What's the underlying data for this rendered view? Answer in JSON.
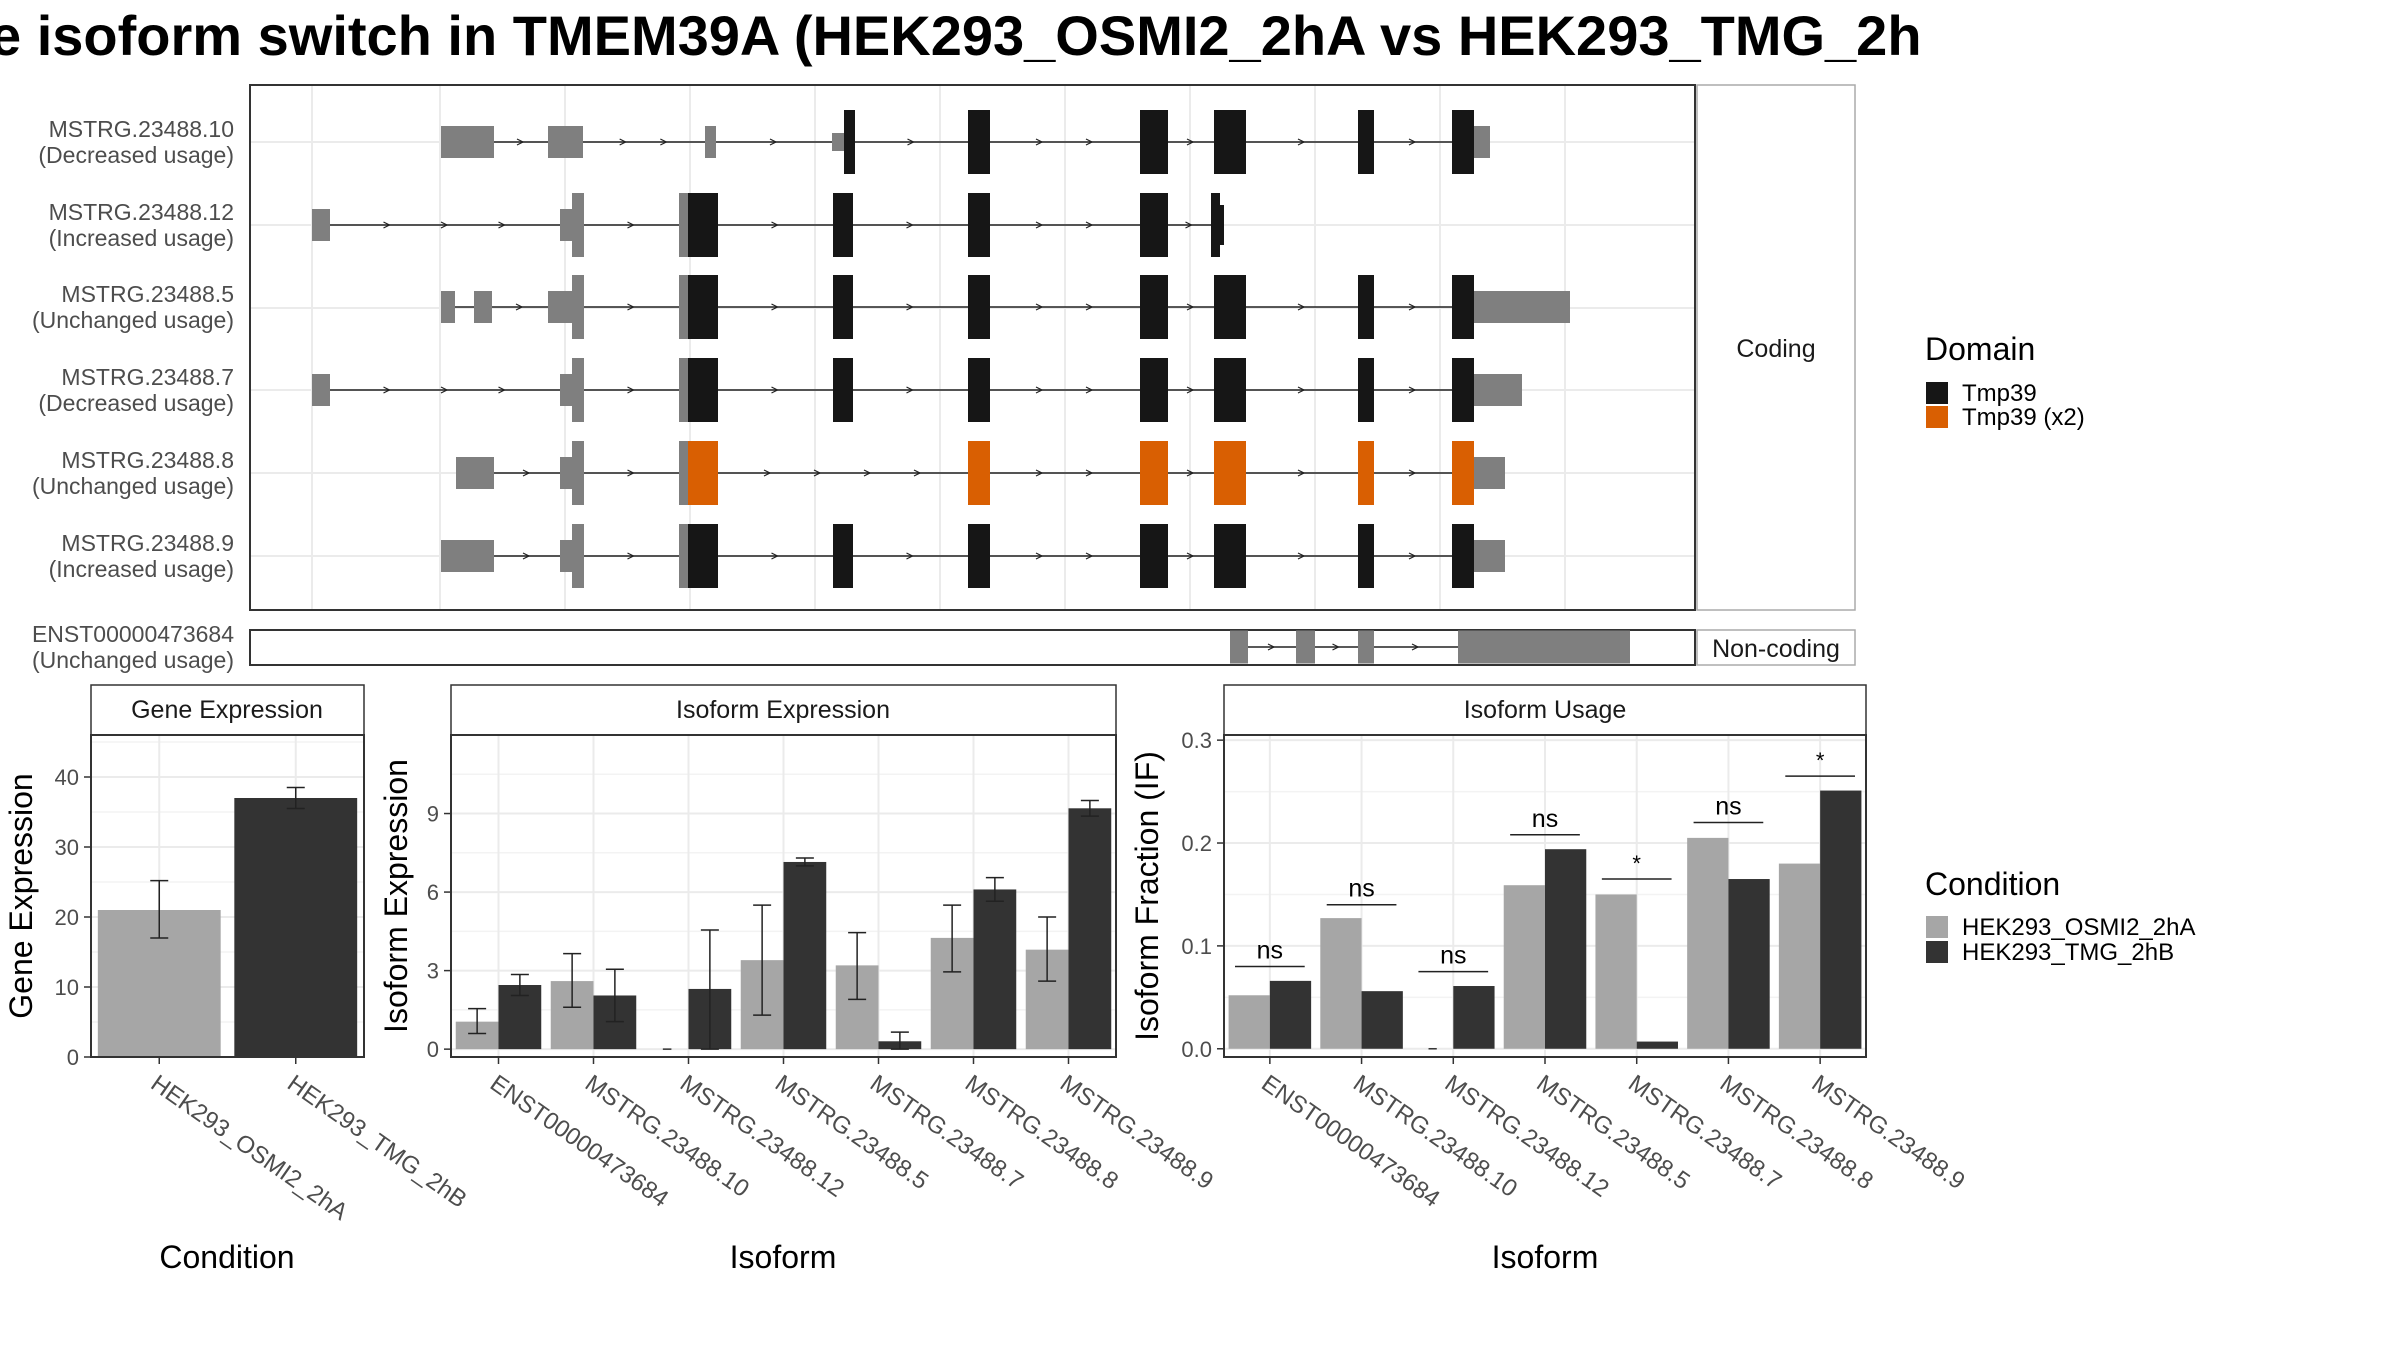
{
  "title": "e isoform switch in TMEM39A (HEK293_OSMI2_2hA vs HEK293_TMG_2h",
  "colors": {
    "condition_a": "#a6a6a6",
    "condition_b": "#333333",
    "domain_tmp39": "#161616",
    "domain_tmp39_x2": "#d95f02",
    "utr": "#7f7f7f",
    "grid": "#ebebeb",
    "panel_border": "#333333",
    "strip_border": "#aaaaaa"
  },
  "structure": {
    "coding_strip": "Coding",
    "noncoding_strip": "Non-coding",
    "coding_isoforms": [
      {
        "id": "MSTRG.23488.10",
        "usage": "(Decreased usage)"
      },
      {
        "id": "MSTRG.23488.12",
        "usage": "(Increased usage)"
      },
      {
        "id": "MSTRG.23488.5",
        "usage": "(Unchanged usage)"
      },
      {
        "id": "MSTRG.23488.7",
        "usage": "(Decreased usage)"
      },
      {
        "id": "MSTRG.23488.8",
        "usage": "(Unchanged usage)"
      },
      {
        "id": "MSTRG.23488.9",
        "usage": "(Increased usage)"
      }
    ],
    "noncoding_isoforms": [
      {
        "id": "ENST00000473684",
        "usage": "(Unchanged usage)"
      }
    ]
  },
  "legend_domain": {
    "title": "Domain",
    "items": [
      {
        "label": "Tmp39",
        "color": "#161616"
      },
      {
        "label": "Tmp39 (x2)",
        "color": "#d95f02"
      }
    ]
  },
  "legend_condition": {
    "title": "Condition",
    "items": [
      {
        "label": "HEK293_OSMI2_2hA",
        "color": "#a6a6a6"
      },
      {
        "label": "HEK293_TMG_2hB",
        "color": "#333333"
      }
    ]
  },
  "chart_data": [
    {
      "type": "bar",
      "strip": "Gene Expression",
      "xlabel": "Condition",
      "ylabel": "Gene Expression",
      "ylim": [
        0,
        46
      ],
      "yticks": [
        0,
        10,
        20,
        30,
        40
      ],
      "categories": [
        "HEK293_OSMI2_2hA",
        "HEK293_TMG_2hB"
      ],
      "values": [
        21,
        37
      ],
      "errors": [
        [
          17,
          25.2
        ],
        [
          35.5,
          38.5
        ]
      ]
    },
    {
      "type": "bar",
      "strip": "Isoform Expression",
      "xlabel": "Isoform",
      "ylabel": "Isoform Expression",
      "ylim": [
        -0.3,
        12
      ],
      "yticks": [
        0,
        3,
        6,
        9
      ],
      "categories": [
        "ENST00000473684",
        "MSTRG.23488.10",
        "MSTRG.23488.12",
        "MSTRG.23488.5",
        "MSTRG.23488.7",
        "MSTRG.23488.8",
        "MSTRG.23488.9"
      ],
      "series": [
        {
          "name": "HEK293_OSMI2_2hA",
          "values": [
            1.05,
            2.6,
            0.0,
            3.4,
            3.2,
            4.25,
            3.8
          ],
          "errors": [
            [
              0.6,
              1.55
            ],
            [
              1.6,
              3.65
            ],
            [
              0.0,
              0.0
            ],
            [
              1.3,
              5.5
            ],
            [
              1.9,
              4.45
            ],
            [
              2.95,
              5.5
            ],
            [
              2.6,
              5.05
            ]
          ]
        },
        {
          "name": "HEK293_TMG_2hB",
          "values": [
            2.45,
            2.05,
            2.3,
            7.15,
            0.3,
            6.1,
            9.2
          ],
          "errors": [
            [
              2.05,
              2.85
            ],
            [
              1.05,
              3.05
            ],
            [
              0.0,
              4.55
            ],
            [
              7.0,
              7.3
            ],
            [
              0.0,
              0.65
            ],
            [
              5.65,
              6.55
            ],
            [
              8.9,
              9.5
            ]
          ]
        }
      ]
    },
    {
      "type": "bar",
      "strip": "Isoform Usage",
      "xlabel": "Isoform",
      "ylabel": "Isoform Fraction (IF)",
      "ylim": [
        -0.008,
        0.305
      ],
      "yticks": [
        0.0,
        0.1,
        0.2,
        0.3
      ],
      "categories": [
        "ENST00000473684",
        "MSTRG.23488.10",
        "MSTRG.23488.12",
        "MSTRG.23488.5",
        "MSTRG.23488.7",
        "MSTRG.23488.8",
        "MSTRG.23488.9"
      ],
      "series": [
        {
          "name": "HEK293_OSMI2_2hA",
          "values": [
            0.052,
            0.127,
            0.0,
            0.159,
            0.15,
            0.205,
            0.18
          ]
        },
        {
          "name": "HEK293_TMG_2hB",
          "values": [
            0.066,
            0.056,
            0.061,
            0.194,
            0.007,
            0.165,
            0.251
          ]
        }
      ],
      "significance": [
        {
          "label": "ns",
          "y": 0.08
        },
        {
          "label": "ns",
          "y": 0.14
        },
        {
          "label": "ns",
          "y": 0.075
        },
        {
          "label": "ns",
          "y": 0.208
        },
        {
          "label": "*",
          "y": 0.165
        },
        {
          "label": "ns",
          "y": 0.22
        },
        {
          "label": "*",
          "y": 0.265
        }
      ]
    }
  ]
}
